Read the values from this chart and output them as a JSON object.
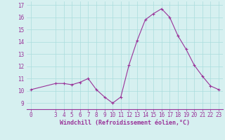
{
  "x": [
    0,
    3,
    4,
    5,
    6,
    7,
    8,
    9,
    10,
    11,
    12,
    13,
    14,
    15,
    16,
    17,
    18,
    19,
    20,
    21,
    22,
    23
  ],
  "y": [
    10.1,
    10.6,
    10.6,
    10.5,
    10.7,
    11.0,
    10.1,
    9.5,
    9.0,
    9.5,
    12.1,
    14.1,
    15.8,
    16.3,
    16.7,
    16.0,
    14.5,
    13.4,
    12.1,
    11.2,
    10.4,
    10.1
  ],
  "line_color": "#993399",
  "marker": "+",
  "marker_size": 3,
  "line_width": 0.8,
  "bg_color": "#d6f0f0",
  "grid_color": "#aadddd",
  "xlabel": "Windchill (Refroidissement éolien,°C)",
  "xlabel_color": "#993399",
  "xlabel_fontsize": 6.0,
  "tick_color": "#993399",
  "tick_fontsize": 5.5,
  "ylim": [
    8.5,
    17.3
  ],
  "xlim": [
    -0.5,
    23.5
  ],
  "yticks": [
    9,
    10,
    11,
    12,
    13,
    14,
    15,
    16,
    17
  ],
  "xticks": [
    0,
    3,
    4,
    5,
    6,
    7,
    8,
    9,
    10,
    11,
    12,
    13,
    14,
    15,
    16,
    17,
    18,
    19,
    20,
    21,
    22,
    23
  ]
}
